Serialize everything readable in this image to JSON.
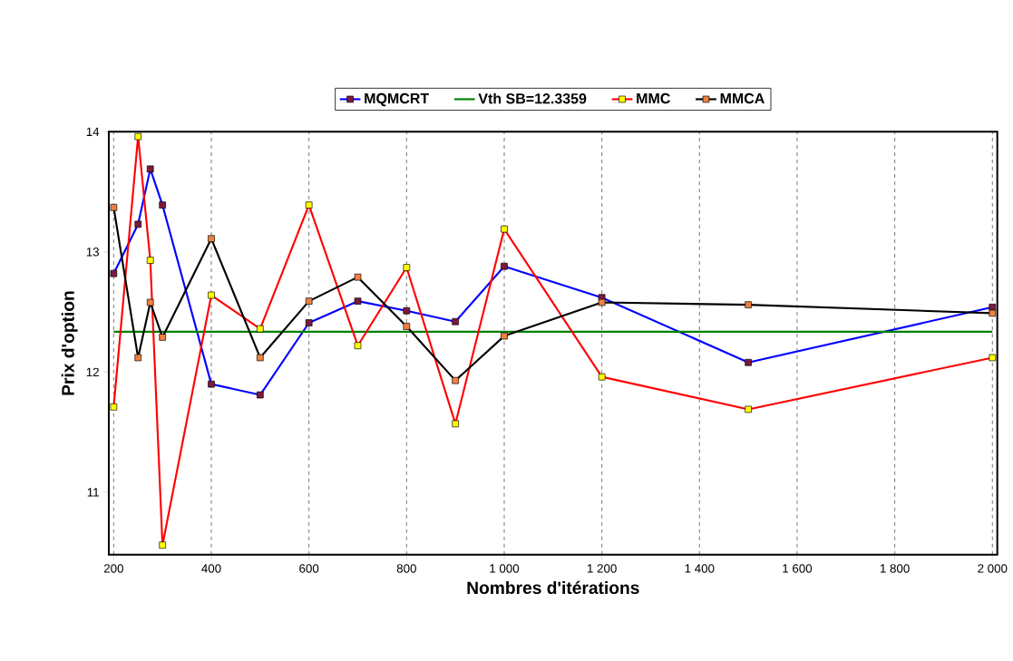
{
  "chart_data": {
    "type": "line",
    "xlabel": "Nombres d'itérations",
    "ylabel": "Prix d'option",
    "x": [
      200,
      250,
      275,
      300,
      400,
      500,
      600,
      700,
      800,
      900,
      1000,
      1200,
      1500,
      2000
    ],
    "series": [
      {
        "name": "MQMCRT",
        "color": "#0000ff",
        "values": [
          12.82,
          13.23,
          13.69,
          13.39,
          11.9,
          11.81,
          12.41,
          12.59,
          12.51,
          12.42,
          12.88,
          12.62,
          12.08,
          12.54
        ]
      },
      {
        "name": "Vth SB=12.3359",
        "color": "#008000",
        "x": [
          200,
          2000
        ],
        "values": [
          12.3359,
          12.3359
        ],
        "marker": "none"
      },
      {
        "name": "MMC",
        "color": "#ff0000",
        "values": [
          11.71,
          13.96,
          12.93,
          10.56,
          12.64,
          12.36,
          13.39,
          12.22,
          12.87,
          11.57,
          13.19,
          11.96,
          11.69,
          12.12
        ]
      },
      {
        "name": "MMCA",
        "color": "#000000",
        "values": [
          13.37,
          12.12,
          12.58,
          12.29,
          13.11,
          12.12,
          12.59,
          12.79,
          12.38,
          11.93,
          12.3,
          12.58,
          12.56,
          12.49
        ]
      }
    ],
    "xlim": [
      190,
      2010
    ],
    "ylim": [
      10.48,
      14
    ],
    "xticks": [
      200,
      400,
      600,
      800,
      {
        "value": 1000,
        "label": "1 000"
      },
      {
        "value": 1200,
        "label": "1 200"
      },
      {
        "value": 1400,
        "label": "1 400"
      },
      {
        "value": 1600,
        "label": "1 600"
      },
      {
        "value": 1800,
        "label": "1 800"
      },
      {
        "value": 2000,
        "label": "2 000"
      }
    ],
    "yticks": [
      11,
      12,
      13,
      14
    ],
    "grid": "x",
    "legend": "top",
    "marker": "square",
    "line_style": "solid"
  }
}
